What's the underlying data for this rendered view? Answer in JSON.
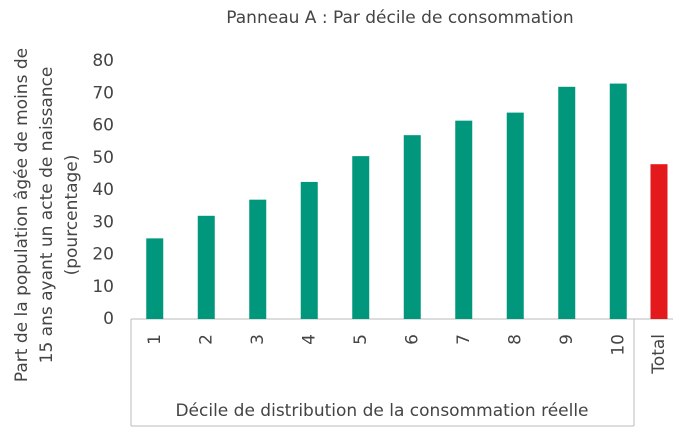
{
  "chart_data": {
    "type": "bar",
    "title": "Panneau A : Par décile de consommation",
    "ylabel": [
      "Part de la population âgée de moins de",
      "15 ans ayant un acte de naissance",
      "(pourcentage)"
    ],
    "xlabel": "Décile de distribution de la consommation réelle",
    "categories": [
      "1",
      "2",
      "3",
      "4",
      "5",
      "6",
      "7",
      "8",
      "9",
      "10",
      "Total"
    ],
    "values": [
      25,
      32,
      37,
      42.5,
      50.5,
      57,
      61.5,
      64,
      72,
      73,
      48
    ],
    "colors": [
      "#00977c",
      "#00977c",
      "#00977c",
      "#00977c",
      "#00977c",
      "#00977c",
      "#00977c",
      "#00977c",
      "#00977c",
      "#00977c",
      "#e3191c"
    ],
    "ylim": [
      0,
      80
    ],
    "yticks": [
      0,
      10,
      20,
      30,
      40,
      50,
      60,
      70,
      80
    ],
    "grid": false
  }
}
